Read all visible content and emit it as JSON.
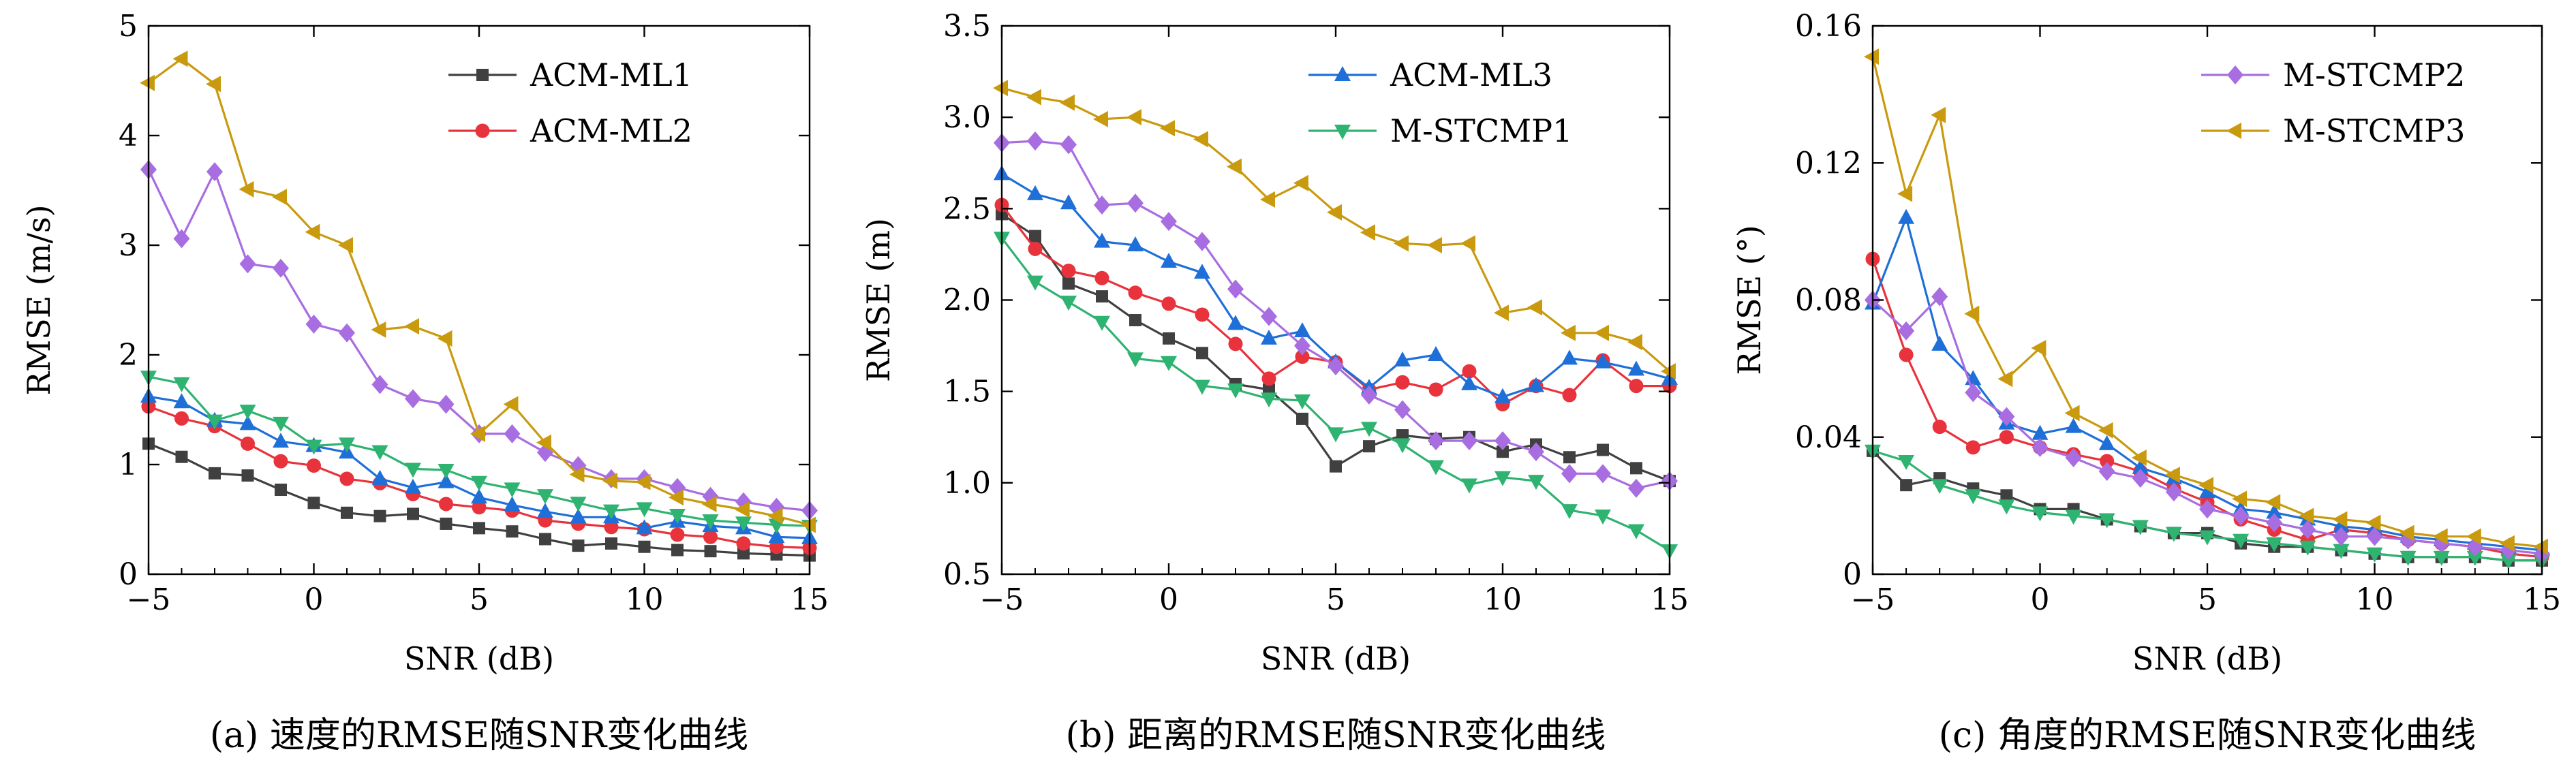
{
  "chart_data": [
    {
      "type": "line",
      "caption": "(a) 速度的RMSE随SNR变化曲线",
      "xlabel": "SNR (dB)",
      "ylabel": "RMSE (m/s)",
      "xlim": [
        -5,
        15
      ],
      "ylim": [
        0,
        5
      ],
      "xticks": [
        -5,
        0,
        5,
        10,
        15
      ],
      "xtick_labels": [
        "−5",
        "0",
        "5",
        "10",
        "15"
      ],
      "yticks": [
        0,
        1,
        2,
        3,
        4,
        5
      ],
      "ytick_labels": [
        "0",
        "1",
        "2",
        "3",
        "4",
        "5"
      ],
      "legend": {
        "position": "top-right",
        "entries": [
          "ACM-ML1",
          "ACM-ML2"
        ]
      },
      "x": [
        -5,
        -4,
        -3,
        -2,
        -1,
        0,
        1,
        2,
        3,
        4,
        5,
        6,
        7,
        8,
        9,
        10,
        11,
        12,
        13,
        14,
        15
      ],
      "series": [
        {
          "name": "ACM-ML1",
          "color": "#404040",
          "marker": "square",
          "values": [
            1.19,
            1.07,
            0.92,
            0.9,
            0.77,
            0.65,
            0.56,
            0.53,
            0.55,
            0.46,
            0.42,
            0.39,
            0.32,
            0.26,
            0.28,
            0.25,
            0.22,
            0.21,
            0.19,
            0.18,
            0.17
          ]
        },
        {
          "name": "ACM-ML2",
          "color": "#e8323c",
          "marker": "circle",
          "values": [
            1.53,
            1.42,
            1.35,
            1.19,
            1.03,
            0.99,
            0.87,
            0.83,
            0.73,
            0.64,
            0.61,
            0.58,
            0.49,
            0.46,
            0.43,
            0.41,
            0.36,
            0.34,
            0.28,
            0.25,
            0.24
          ]
        },
        {
          "name": "ACM-ML3",
          "color": "#1f6fd9",
          "marker": "triangle-up",
          "values": [
            1.62,
            1.57,
            1.4,
            1.37,
            1.21,
            1.17,
            1.11,
            0.87,
            0.79,
            0.84,
            0.7,
            0.63,
            0.57,
            0.52,
            0.52,
            0.42,
            0.48,
            0.44,
            0.42,
            0.34,
            0.33
          ]
        },
        {
          "name": "M-STCMP1",
          "color": "#2fb371",
          "marker": "triangle-down",
          "values": [
            1.8,
            1.74,
            1.4,
            1.49,
            1.38,
            1.17,
            1.19,
            1.12,
            0.96,
            0.95,
            0.84,
            0.78,
            0.72,
            0.65,
            0.58,
            0.6,
            0.54,
            0.49,
            0.47,
            0.45,
            0.44
          ]
        },
        {
          "name": "M-STCMP2",
          "color": "#a86de0",
          "marker": "diamond",
          "values": [
            3.69,
            3.06,
            3.67,
            2.83,
            2.79,
            2.28,
            2.2,
            1.73,
            1.6,
            1.55,
            1.28,
            1.28,
            1.11,
            0.99,
            0.87,
            0.87,
            0.79,
            0.71,
            0.66,
            0.61,
            0.58
          ]
        },
        {
          "name": "M-STCMP3",
          "color": "#c99a0e",
          "marker": "triangle-left",
          "values": [
            4.48,
            4.7,
            4.47,
            3.51,
            3.44,
            3.12,
            3.0,
            2.23,
            2.26,
            2.15,
            1.28,
            1.55,
            1.2,
            0.91,
            0.85,
            0.84,
            0.7,
            0.64,
            0.59,
            0.53,
            0.45
          ]
        }
      ]
    },
    {
      "type": "line",
      "caption": "(b) 距离的RMSE随SNR变化曲线",
      "xlabel": "SNR (dB)",
      "ylabel": "RMSE (m)",
      "xlim": [
        -5,
        15
      ],
      "ylim": [
        0.5,
        3.5
      ],
      "xticks": [
        -5,
        0,
        5,
        10,
        15
      ],
      "xtick_labels": [
        "−5",
        "0",
        "5",
        "10",
        "15"
      ],
      "yticks": [
        0.5,
        1.0,
        1.5,
        2.0,
        2.5,
        3.0,
        3.5
      ],
      "ytick_labels": [
        "0.5",
        "1.0",
        "1.5",
        "2.0",
        "2.5",
        "3.0",
        "3.5"
      ],
      "legend": {
        "position": "top-right",
        "entries": [
          "ACM-ML3",
          "M-STCMP1"
        ]
      },
      "x": [
        -5,
        -4,
        -3,
        -2,
        -1,
        0,
        1,
        2,
        3,
        4,
        5,
        6,
        7,
        8,
        9,
        10,
        11,
        12,
        13,
        14,
        15
      ],
      "series": [
        {
          "name": "ACM-ML1",
          "color": "#404040",
          "marker": "square",
          "values": [
            2.47,
            2.35,
            2.09,
            2.02,
            1.89,
            1.79,
            1.71,
            1.54,
            1.51,
            1.35,
            1.09,
            1.2,
            1.26,
            1.24,
            1.25,
            1.17,
            1.21,
            1.14,
            1.18,
            1.08,
            1.01
          ]
        },
        {
          "name": "ACM-ML2",
          "color": "#e8323c",
          "marker": "circle",
          "values": [
            2.52,
            2.28,
            2.16,
            2.12,
            2.04,
            1.98,
            1.92,
            1.76,
            1.57,
            1.69,
            1.66,
            1.51,
            1.55,
            1.51,
            1.61,
            1.43,
            1.53,
            1.48,
            1.67,
            1.53,
            1.53
          ]
        },
        {
          "name": "ACM-ML3",
          "color": "#1f6fd9",
          "marker": "triangle-up",
          "values": [
            2.69,
            2.58,
            2.53,
            2.32,
            2.3,
            2.21,
            2.15,
            1.87,
            1.79,
            1.83,
            1.66,
            1.52,
            1.67,
            1.7,
            1.54,
            1.47,
            1.53,
            1.68,
            1.66,
            1.62,
            1.57
          ]
        },
        {
          "name": "M-STCMP1",
          "color": "#2fb371",
          "marker": "triangle-down",
          "values": [
            2.34,
            2.1,
            1.99,
            1.88,
            1.68,
            1.66,
            1.53,
            1.51,
            1.46,
            1.45,
            1.27,
            1.3,
            1.21,
            1.09,
            0.99,
            1.03,
            1.01,
            0.85,
            0.82,
            0.74,
            0.63
          ]
        },
        {
          "name": "M-STCMP2",
          "color": "#a86de0",
          "marker": "diamond",
          "values": [
            2.86,
            2.87,
            2.85,
            2.52,
            2.53,
            2.43,
            2.32,
            2.06,
            1.91,
            1.75,
            1.64,
            1.48,
            1.4,
            1.23,
            1.23,
            1.23,
            1.17,
            1.05,
            1.05,
            0.97,
            1.01
          ]
        },
        {
          "name": "M-STCMP3",
          "color": "#c99a0e",
          "marker": "triangle-left",
          "values": [
            3.16,
            3.11,
            3.08,
            2.99,
            3.0,
            2.94,
            2.88,
            2.73,
            2.55,
            2.64,
            2.48,
            2.37,
            2.31,
            2.3,
            2.31,
            1.93,
            1.96,
            1.82,
            1.82,
            1.77,
            1.61
          ]
        }
      ]
    },
    {
      "type": "line",
      "caption": "(c) 角度的RMSE随SNR变化曲线",
      "xlabel": "SNR (dB)",
      "ylabel": "RMSE (°)",
      "xlim": [
        -5,
        15
      ],
      "ylim": [
        0,
        0.16
      ],
      "xticks": [
        -5,
        0,
        5,
        10,
        15
      ],
      "xtick_labels": [
        "−5",
        "0",
        "5",
        "10",
        "15"
      ],
      "yticks": [
        0,
        0.04,
        0.08,
        0.12,
        0.16
      ],
      "ytick_labels": [
        "0",
        "0.04",
        "0.08",
        "0.12",
        "0.16"
      ],
      "legend": {
        "position": "top-right",
        "entries": [
          "M-STCMP2",
          "M-STCMP3"
        ]
      },
      "x": [
        -5,
        -4,
        -3,
        -2,
        -1,
        0,
        1,
        2,
        3,
        4,
        5,
        6,
        7,
        8,
        9,
        10,
        11,
        12,
        13,
        14,
        15
      ],
      "series": [
        {
          "name": "ACM-ML1",
          "color": "#404040",
          "marker": "square",
          "values": [
            0.036,
            0.026,
            0.028,
            0.025,
            0.023,
            0.019,
            0.019,
            0.016,
            0.014,
            0.012,
            0.012,
            0.009,
            0.008,
            0.008,
            0.007,
            0.006,
            0.005,
            0.005,
            0.005,
            0.004,
            0.004
          ]
        },
        {
          "name": "ACM-ML2",
          "color": "#e8323c",
          "marker": "circle",
          "values": [
            0.092,
            0.064,
            0.043,
            0.037,
            0.04,
            0.037,
            0.035,
            0.033,
            0.03,
            0.025,
            0.021,
            0.016,
            0.013,
            0.01,
            0.013,
            0.012,
            0.01,
            0.009,
            0.008,
            0.006,
            0.005
          ]
        },
        {
          "name": "ACM-ML3",
          "color": "#1f6fd9",
          "marker": "triangle-up",
          "values": [
            0.079,
            0.104,
            0.067,
            0.057,
            0.044,
            0.041,
            0.043,
            0.038,
            0.031,
            0.028,
            0.024,
            0.019,
            0.018,
            0.016,
            0.014,
            0.013,
            0.011,
            0.01,
            0.009,
            0.008,
            0.007
          ]
        },
        {
          "name": "M-STCMP1",
          "color": "#2fb371",
          "marker": "triangle-down",
          "values": [
            0.036,
            0.033,
            0.026,
            0.023,
            0.02,
            0.018,
            0.017,
            0.016,
            0.014,
            0.012,
            0.011,
            0.01,
            0.009,
            0.008,
            0.007,
            0.006,
            0.005,
            0.005,
            0.005,
            0.004,
            0.004
          ]
        },
        {
          "name": "M-STCMP2",
          "color": "#a86de0",
          "marker": "diamond",
          "values": [
            0.08,
            0.071,
            0.081,
            0.053,
            0.046,
            0.037,
            0.034,
            0.03,
            0.028,
            0.024,
            0.019,
            0.017,
            0.015,
            0.013,
            0.011,
            0.011,
            0.01,
            0.009,
            0.008,
            0.007,
            0.006
          ]
        },
        {
          "name": "M-STCMP3",
          "color": "#c99a0e",
          "marker": "triangle-left",
          "values": [
            0.151,
            0.111,
            0.134,
            0.076,
            0.057,
            0.066,
            0.047,
            0.042,
            0.034,
            0.029,
            0.026,
            0.022,
            0.021,
            0.017,
            0.016,
            0.015,
            0.012,
            0.011,
            0.011,
            0.009,
            0.008
          ]
        }
      ]
    }
  ]
}
